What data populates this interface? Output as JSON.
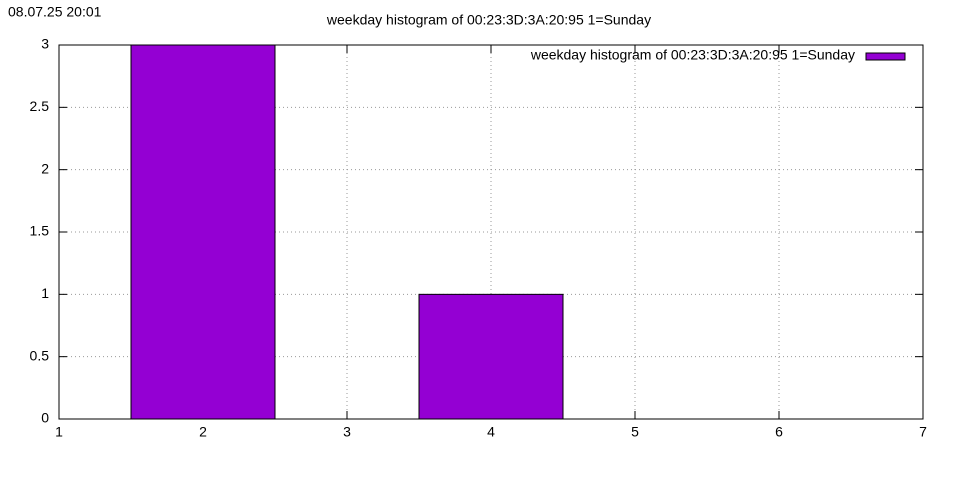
{
  "chart_data": {
    "type": "bar",
    "annotation": "08.07.25 20:01",
    "title": "weekday histogram of 00:23:3D:3A:20:95 1=Sunday",
    "x": [
      2,
      4
    ],
    "series": [
      {
        "name": "weekday histogram of 00:23:3D:3A:20:95 1=Sunday",
        "color": "#9400d3",
        "values": [
          3,
          1
        ]
      }
    ],
    "xlim": [
      1,
      7
    ],
    "xticks": [
      1,
      2,
      3,
      4,
      5,
      6,
      7
    ],
    "ylim": [
      0,
      3
    ],
    "yticks": [
      0,
      0.5,
      1,
      1.5,
      2,
      2.5,
      3
    ],
    "grid": true,
    "legend": "top-right"
  }
}
